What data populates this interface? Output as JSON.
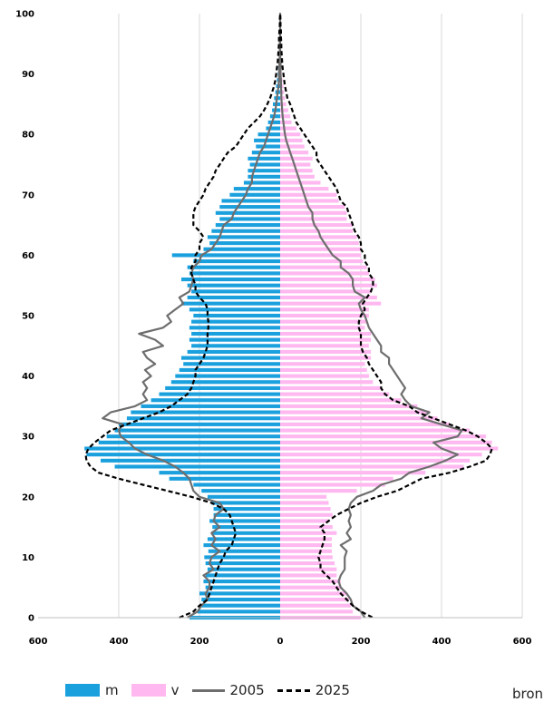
{
  "chart_data": {
    "type": "bar",
    "orientation": "horizontal population pyramid",
    "y_ticks": [
      "0",
      "10",
      "20",
      "30",
      "40",
      "50",
      "60",
      "70",
      "80",
      "90",
      "100"
    ],
    "x_ticks": [
      "600",
      "400",
      "200",
      "0",
      "200",
      "400",
      "600"
    ],
    "xlim": [
      -600,
      600
    ],
    "ylim": [
      0,
      100
    ],
    "grid": "vertical lines",
    "colors": {
      "m": "#1ba0de",
      "v": "#ffb8f0",
      "line_2005": "#6e6e6e",
      "line_2025": "#000000"
    },
    "series": [
      {
        "name": "m",
        "values": [
          225,
          205,
          198,
          195,
          200,
          185,
          190,
          185,
          180,
          185,
          188,
          178,
          190,
          180,
          170,
          168,
          175,
          165,
          165,
          170,
          180,
          195,
          215,
          275,
          300,
          410,
          445,
          480,
          485,
          450,
          430,
          410,
          400,
          380,
          370,
          345,
          320,
          300,
          285,
          270,
          260,
          250,
          240,
          245,
          230,
          220,
          225,
          220,
          225,
          220,
          215,
          225,
          245,
          230,
          220,
          230,
          245,
          225,
          230,
          215,
          268,
          190,
          175,
          180,
          170,
          160,
          150,
          160,
          150,
          145,
          125,
          115,
          90,
          80,
          80,
          75,
          80,
          70,
          60,
          65,
          55,
          35,
          30,
          25,
          20,
          18,
          15,
          12,
          10,
          8,
          6,
          5,
          4,
          3,
          3,
          2,
          2,
          1,
          1,
          1,
          0
        ]
      },
      {
        "name": "v",
        "values": [
          200,
          180,
          175,
          170,
          165,
          150,
          150,
          140,
          140,
          135,
          130,
          128,
          128,
          128,
          140,
          130,
          120,
          130,
          125,
          120,
          115,
          190,
          260,
          280,
          360,
          455,
          470,
          500,
          540,
          525,
          510,
          470,
          420,
          390,
          370,
          340,
          300,
          270,
          250,
          230,
          220,
          215,
          210,
          225,
          225,
          220,
          225,
          225,
          210,
          215,
          220,
          220,
          250,
          240,
          225,
          240,
          235,
          220,
          215,
          205,
          200,
          200,
          195,
          190,
          180,
          180,
          165,
          165,
          160,
          145,
          140,
          120,
          100,
          85,
          80,
          75,
          80,
          70,
          60,
          55,
          50,
          40,
          28,
          25,
          20,
          15,
          12,
          10,
          8,
          6,
          4,
          3,
          3,
          2,
          2,
          1,
          1,
          1,
          0,
          0,
          0
        ]
      },
      {
        "name": "2005",
        "type": "line",
        "m": [
          230,
          205,
          195,
          180,
          185,
          175,
          175,
          190,
          165,
          175,
          170,
          150,
          170,
          160,
          170,
          150,
          165,
          160,
          140,
          150,
          200,
          215,
          220,
          225,
          240,
          260,
          290,
          330,
          360,
          375,
          395,
          400,
          390,
          440,
          420,
          360,
          330,
          340,
          330,
          340,
          320,
          335,
          310,
          330,
          340,
          290,
          310,
          350,
          290,
          270,
          280,
          260,
          240,
          250,
          225,
          220,
          215,
          220,
          215,
          200,
          195,
          170,
          160,
          150,
          145,
          140,
          120,
          115,
          105,
          95,
          85,
          80,
          70,
          70,
          65,
          60,
          55,
          50,
          40,
          35,
          30,
          25,
          20,
          15,
          12,
          10,
          8,
          6,
          4,
          3,
          3,
          2,
          2,
          1,
          1,
          1,
          0,
          0,
          0,
          0,
          0
        ],
        "v": [
          210,
          200,
          180,
          175,
          165,
          150,
          145,
          150,
          160,
          160,
          160,
          165,
          150,
          175,
          165,
          175,
          170,
          175,
          170,
          175,
          190,
          230,
          250,
          300,
          320,
          370,
          410,
          440,
          400,
          380,
          440,
          450,
          400,
          350,
          370,
          325,
          310,
          300,
          310,
          300,
          290,
          280,
          270,
          270,
          250,
          250,
          240,
          230,
          220,
          215,
          210,
          200,
          195,
          210,
          185,
          180,
          180,
          170,
          150,
          150,
          130,
          120,
          110,
          100,
          95,
          85,
          80,
          80,
          70,
          65,
          60,
          55,
          50,
          45,
          40,
          35,
          30,
          25,
          20,
          15,
          12,
          10,
          8,
          6,
          5,
          4,
          3,
          3,
          2,
          2,
          1,
          1,
          1,
          0,
          0,
          0,
          0,
          0,
          0,
          0,
          0
        ]
      },
      {
        "name": "2025",
        "type": "line",
        "m": [
          250,
          215,
          200,
          180,
          175,
          170,
          165,
          160,
          155,
          150,
          140,
          135,
          120,
          115,
          110,
          115,
          120,
          125,
          140,
          170,
          220,
          280,
          340,
          400,
          450,
          470,
          480,
          482,
          475,
          460,
          440,
          420,
          380,
          340,
          300,
          270,
          250,
          230,
          220,
          215,
          210,
          210,
          200,
          190,
          185,
          180,
          180,
          180,
          178,
          178,
          180,
          180,
          185,
          200,
          210,
          210,
          215,
          220,
          220,
          210,
          210,
          200,
          200,
          190,
          200,
          215,
          215,
          215,
          210,
          200,
          190,
          185,
          175,
          165,
          160,
          150,
          140,
          130,
          110,
          100,
          90,
          80,
          65,
          50,
          40,
          32,
          25,
          20,
          15,
          12,
          10,
          8,
          6,
          5,
          4,
          3,
          3,
          2,
          1,
          1,
          0
        ],
        "v": [
          230,
          200,
          180,
          165,
          150,
          140,
          130,
          115,
          100,
          100,
          95,
          100,
          105,
          110,
          110,
          100,
          120,
          140,
          170,
          200,
          240,
          290,
          320,
          350,
          420,
          470,
          510,
          520,
          525,
          510,
          490,
          460,
          420,
          380,
          340,
          320,
          280,
          260,
          250,
          250,
          240,
          230,
          220,
          215,
          205,
          200,
          200,
          200,
          195,
          195,
          200,
          210,
          205,
          215,
          225,
          230,
          230,
          220,
          220,
          210,
          210,
          200,
          200,
          195,
          185,
          180,
          175,
          170,
          165,
          150,
          145,
          140,
          130,
          120,
          110,
          100,
          90,
          90,
          80,
          70,
          60,
          50,
          40,
          35,
          30,
          25,
          18,
          15,
          12,
          10,
          8,
          6,
          5,
          4,
          3,
          3,
          2,
          2,
          1,
          1,
          0
        ]
      }
    ]
  },
  "legend": {
    "m": "m",
    "v": "v",
    "s2005": "2005",
    "s2025": "2025"
  },
  "source_text": "bron"
}
